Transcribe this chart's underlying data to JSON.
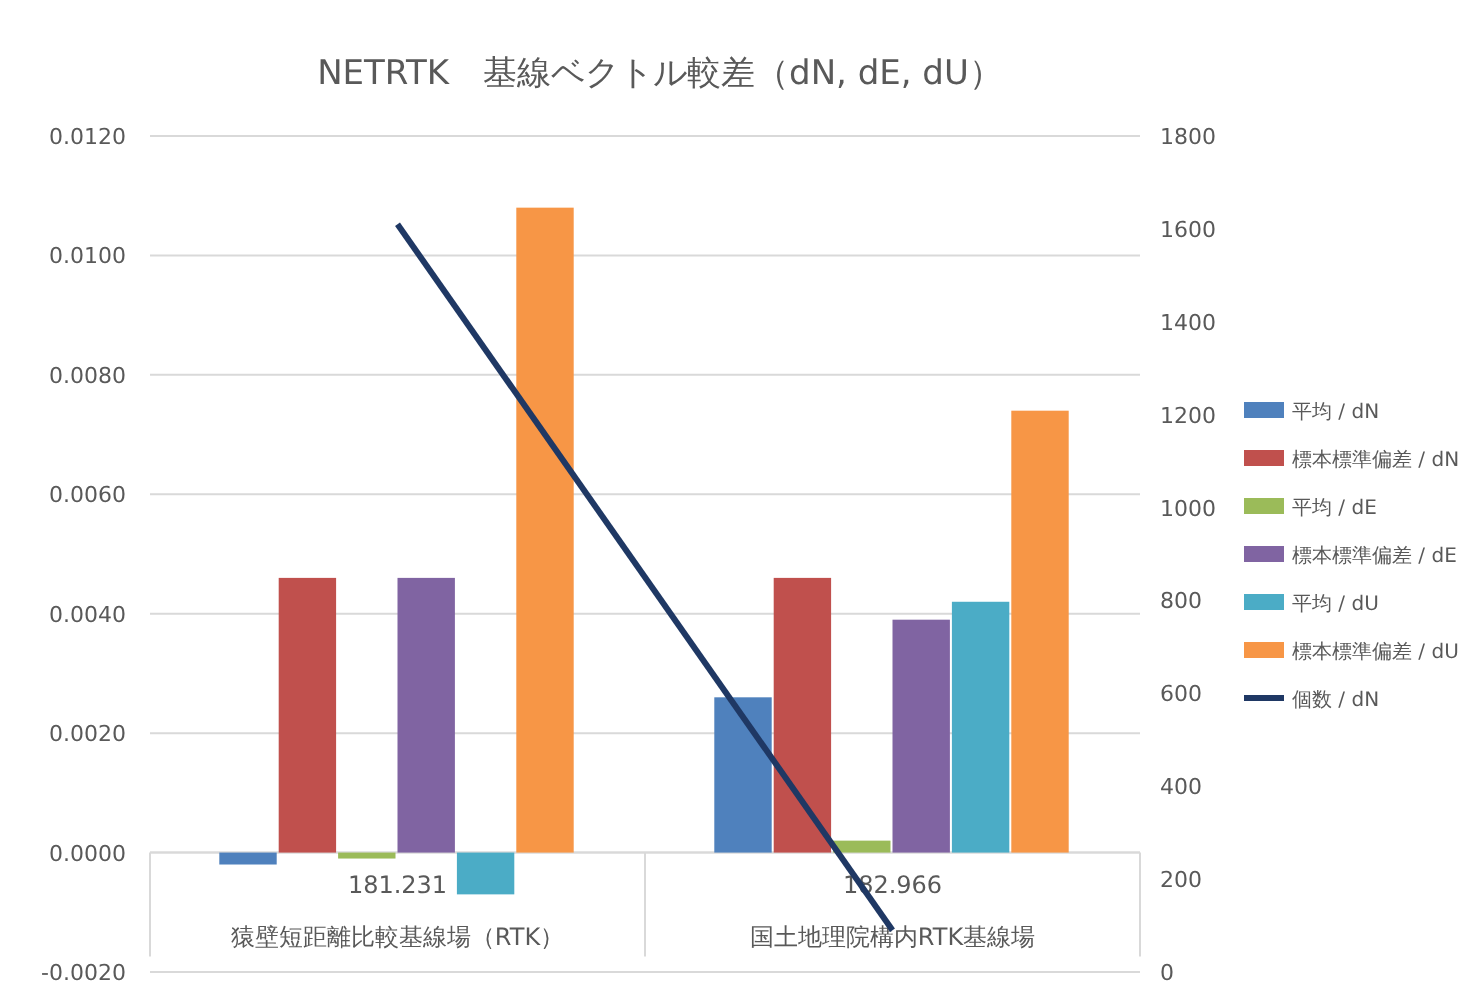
{
  "chart_data": {
    "type": "bar",
    "title": "NETRTK　基線ベクトル較差（dN, dE, dU）",
    "categories": [
      "181.231\n猿壁短距離比較基線場（RTK）",
      "182.966\n国土地理院構内RTK基線場"
    ],
    "series": [
      {
        "name": "平均 / dN",
        "color": "#4f81bd",
        "values": [
          -0.0002,
          0.0026
        ]
      },
      {
        "name": "標本標準偏差 / dN",
        "color": "#c0504d",
        "values": [
          0.0046,
          0.0046
        ]
      },
      {
        "name": "平均 / dE",
        "color": "#9bbb59",
        "values": [
          -0.0001,
          0.0002
        ]
      },
      {
        "name": "標本標準偏差 / dE",
        "color": "#8064a2",
        "values": [
          0.0046,
          0.0039
        ]
      },
      {
        "name": "平均 / dU",
        "color": "#4bacc6",
        "values": [
          -0.0007,
          0.0042
        ]
      },
      {
        "name": "標本標準偏差 / dU",
        "color": "#f79646",
        "values": [
          0.0108,
          0.0074
        ]
      },
      {
        "name": "個数 / dN",
        "color": "#1f3864",
        "type": "line",
        "axis": "y2",
        "values": [
          1610,
          90
        ]
      }
    ],
    "ylim": [
      -0.002,
      0.012
    ],
    "yticks": [
      {
        "value": -0.002,
        "label": "-0.0020"
      },
      {
        "value": 0,
        "label": "0.0000"
      },
      {
        "value": 0.002,
        "label": "0.0020"
      },
      {
        "value": 0.004,
        "label": "0.0040"
      },
      {
        "value": 0.006,
        "label": "0.0060"
      },
      {
        "value": 0.008,
        "label": "0.0080"
      },
      {
        "value": 0.01,
        "label": "0.0100"
      },
      {
        "value": 0.012,
        "label": "0.0120"
      }
    ],
    "y2lim": [
      0,
      1800
    ],
    "y2ticks": [
      0,
      200,
      400,
      600,
      800,
      1000,
      1200,
      1400,
      1600,
      1800
    ],
    "grid": "y",
    "legend": "right"
  }
}
